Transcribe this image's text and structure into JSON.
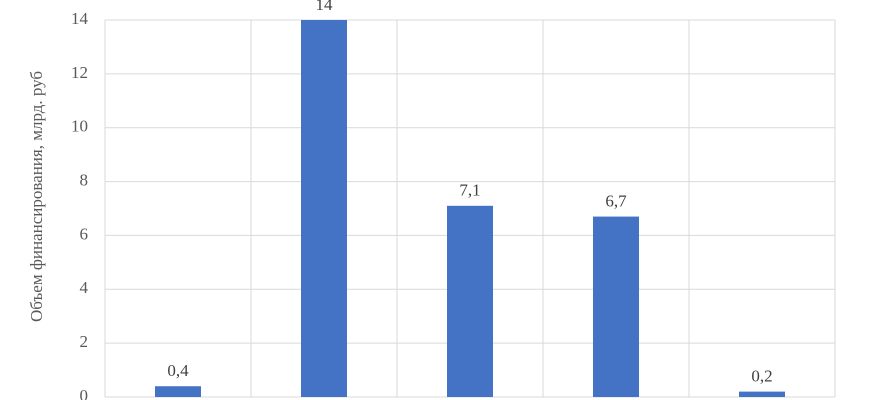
{
  "chart_data": {
    "type": "bar",
    "y_label": "Объем финансирования, млрд. руб",
    "categories": [
      null,
      null,
      null,
      null,
      null
    ],
    "values": [
      0.4,
      14,
      7.1,
      6.7,
      0.2
    ],
    "value_labels": [
      "0,4",
      "14",
      "7,1",
      "6,7",
      "0,2"
    ],
    "color": "#4472c4",
    "ylim": [
      0,
      14
    ],
    "yticks": [
      0,
      2,
      4,
      6,
      8,
      10,
      12,
      14
    ],
    "grid": true
  }
}
